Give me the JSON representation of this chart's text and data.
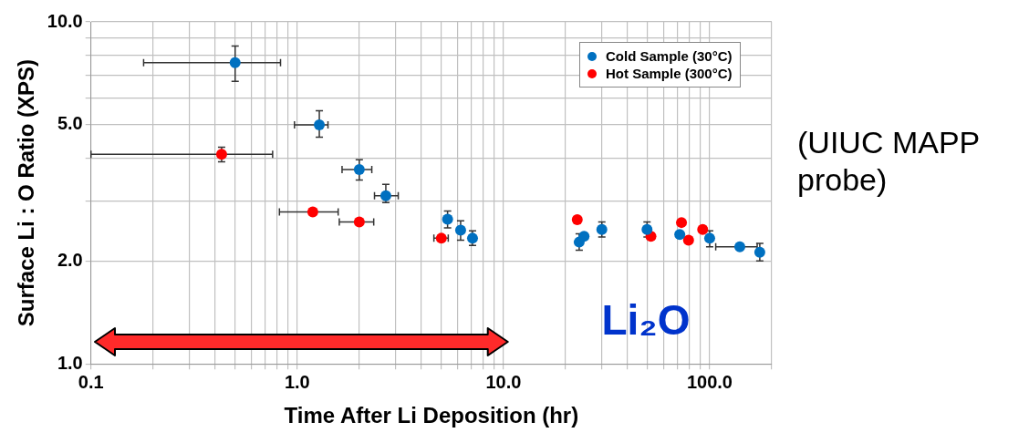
{
  "chart_data": {
    "type": "scatter",
    "xlabel": "Time After Li Deposition (hr)",
    "ylabel": "Surface Li : O Ratio (XPS)",
    "log": "xy",
    "grid": true,
    "legend": "top right",
    "marker": "circle",
    "xlim": [
      0.1,
      200
    ],
    "ylim": [
      1,
      10
    ],
    "xticks": [
      {
        "value": 0.1,
        "label": "0.1"
      },
      {
        "value": 0.2,
        "label": null
      },
      {
        "value": 0.3,
        "label": null
      },
      {
        "value": 0.4,
        "label": null
      },
      {
        "value": 0.5,
        "label": null
      },
      {
        "value": 0.6,
        "label": null
      },
      {
        "value": 0.7,
        "label": null
      },
      {
        "value": 0.8,
        "label": null
      },
      {
        "value": 0.9,
        "label": null
      },
      {
        "value": 1,
        "label": "1.0"
      },
      {
        "value": 2,
        "label": null
      },
      {
        "value": 3,
        "label": null
      },
      {
        "value": 4,
        "label": null
      },
      {
        "value": 5,
        "label": null
      },
      {
        "value": 6,
        "label": null
      },
      {
        "value": 7,
        "label": null
      },
      {
        "value": 8,
        "label": null
      },
      {
        "value": 9,
        "label": null
      },
      {
        "value": 10,
        "label": "10.0"
      },
      {
        "value": 20,
        "label": null
      },
      {
        "value": 30,
        "label": null
      },
      {
        "value": 40,
        "label": null
      },
      {
        "value": 50,
        "label": null
      },
      {
        "value": 60,
        "label": null
      },
      {
        "value": 70,
        "label": null
      },
      {
        "value": 80,
        "label": null
      },
      {
        "value": 90,
        "label": null
      },
      {
        "value": 100,
        "label": "100.0"
      },
      {
        "value": 200,
        "label": null
      }
    ],
    "yticks": [
      {
        "value": 1,
        "label": "1.0"
      },
      {
        "value": 2,
        "label": "2.0"
      },
      {
        "value": 3,
        "label": null
      },
      {
        "value": 4,
        "label": null
      },
      {
        "value": 5,
        "label": "5.0"
      },
      {
        "value": 6,
        "label": null
      },
      {
        "value": 7,
        "label": null
      },
      {
        "value": 8,
        "label": null
      },
      {
        "value": 9,
        "label": null
      },
      {
        "value": 10,
        "label": "10.0"
      }
    ],
    "series": [
      {
        "name": "Cold Sample (30°C)",
        "color": "#0070c0",
        "x": [
          0.5,
          1.28,
          2.0,
          2.69,
          5.36,
          6.2,
          7.08,
          23.3,
          24.6,
          30,
          49.7,
          71.6,
          100,
          140,
          175
        ],
        "values": [
          7.6,
          5.0,
          3.7,
          3.1,
          2.65,
          2.46,
          2.33,
          2.27,
          2.36,
          2.47,
          2.47,
          2.39,
          2.33,
          2.2,
          2.12
        ],
        "errors": [
          [
            6.7,
            8.5
          ],
          [
            4.6,
            5.5
          ],
          [
            3.45,
            3.95
          ],
          [
            2.96,
            3.35
          ],
          [
            2.5,
            2.8
          ],
          [
            2.3,
            2.62
          ],
          [
            2.22,
            2.45
          ],
          [
            2.15,
            2.4
          ],
          null,
          [
            2.35,
            2.6
          ],
          [
            2.35,
            2.6
          ],
          null,
          [
            2.2,
            2.45
          ],
          null,
          [
            2.0,
            2.25
          ]
        ],
        "xerrors": [
          [
            0.18,
            0.83
          ],
          [
            0.97,
            1.41
          ],
          [
            1.65,
            2.3
          ],
          [
            2.37,
            3.09
          ],
          null,
          null,
          null,
          null,
          null,
          null,
          null,
          null,
          null,
          [
            107,
            170
          ],
          null
        ]
      },
      {
        "name": "Hot Sample (300°C)",
        "color": "#ff0000",
        "x": [
          0.43,
          1.19,
          2.0,
          5.0,
          22.8,
          51.9,
          73,
          79,
          92.5
        ],
        "values": [
          4.1,
          2.78,
          2.6,
          2.33,
          2.64,
          2.36,
          2.59,
          2.3,
          2.47
        ],
        "errors": [
          [
            3.9,
            4.3
          ],
          null,
          null,
          null,
          null,
          null,
          null,
          null,
          null
        ],
        "xerrors": [
          [
            0.1,
            0.76
          ],
          [
            0.82,
            1.58
          ],
          [
            1.6,
            2.35
          ],
          [
            4.6,
            5.4
          ],
          null,
          null,
          null,
          null,
          null
        ]
      }
    ],
    "annotations": [
      "Li₂O",
      "(UIUC MAPP probe)"
    ]
  }
}
